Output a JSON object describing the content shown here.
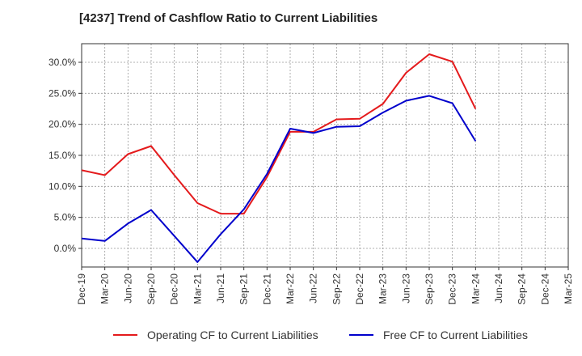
{
  "chart_data": {
    "type": "line",
    "title": "[4237]  Trend of Cashflow Ratio to Current Liabilities",
    "xlabel": "",
    "ylabel": "",
    "x": [
      "Dec-19",
      "Mar-20",
      "Jun-20",
      "Sep-20",
      "Dec-20",
      "Mar-21",
      "Jun-21",
      "Sep-21",
      "Dec-21",
      "Mar-22",
      "Jun-22",
      "Sep-22",
      "Dec-22",
      "Mar-23",
      "Jun-23",
      "Sep-23",
      "Dec-23",
      "Mar-24",
      "Jun-24",
      "Sep-24",
      "Dec-24",
      "Mar-25"
    ],
    "ylim": [
      -3,
      33
    ],
    "yticks": [
      0,
      5,
      10,
      15,
      20,
      25,
      30
    ],
    "ytick_labels": [
      "0.0%",
      "5.0%",
      "10.0%",
      "15.0%",
      "20.0%",
      "25.0%",
      "30.0%"
    ],
    "grid": true,
    "legend_position": "bottom",
    "series": [
      {
        "name": "Operating CF to Current Liabilities",
        "color": "#e41a1c",
        "values": [
          12.6,
          11.8,
          15.2,
          16.5,
          11.8,
          7.3,
          5.6,
          5.6,
          11.5,
          18.8,
          18.8,
          20.8,
          20.9,
          23.3,
          28.3,
          31.3,
          30.1,
          22.5,
          null,
          null,
          null,
          null
        ]
      },
      {
        "name": "Free CF to Current Liabilities",
        "color": "#0000cc",
        "values": [
          1.6,
          1.2,
          4.0,
          6.2,
          2.0,
          -2.2,
          2.3,
          6.3,
          12.0,
          19.3,
          18.6,
          19.6,
          19.7,
          21.9,
          23.8,
          24.6,
          23.4,
          17.3,
          null,
          null,
          null,
          null
        ]
      }
    ]
  }
}
